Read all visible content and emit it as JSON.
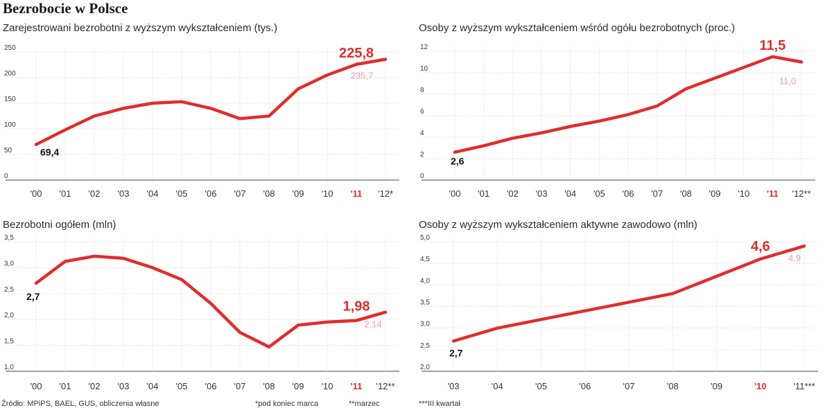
{
  "page_title": "Bezrobocie w Polsce",
  "colors": {
    "line": "#e02d2d",
    "highlight": "#e02d2d",
    "end_label": "#f09a9a",
    "axis": "#999999",
    "grid": "#d8d8d8",
    "text": "#222222"
  },
  "footer": {
    "source": "Źródło: MPiPS, BAEL, GUS, obliczenia własne",
    "note1": "*pod koniec marca",
    "note2": "**marzec",
    "note3": "***III kwartał"
  },
  "chart_data": [
    {
      "type": "line",
      "title": "Zarejestrowani bezrobotni z wyższym wykształceniem (tys.)",
      "categories": [
        "'00",
        "'01",
        "'02",
        "'03",
        "'04",
        "'05",
        "'06",
        "'07",
        "'08",
        "'09",
        "'10",
        "'11",
        "'12*"
      ],
      "highlight_category": "'11",
      "values": [
        69.4,
        98,
        125,
        140,
        150,
        153,
        140,
        120,
        125,
        178,
        205,
        225.8,
        235.7
      ],
      "ylim": [
        0,
        250
      ],
      "yticks": [
        "0",
        "50",
        "100",
        "150",
        "200",
        "250"
      ],
      "first_label": "69,4",
      "highlight_label": "225,8",
      "end_label": "235,7"
    },
    {
      "type": "line",
      "title": "Osoby z wyższym wykształceniem wśród ogółu bezrobotnych (proc.)",
      "categories": [
        "'00",
        "'01",
        "'02",
        "'03",
        "'04",
        "'05",
        "'06",
        "'07",
        "'08",
        "'09",
        "'10",
        "'11",
        "'12**"
      ],
      "highlight_category": "'11",
      "values": [
        2.6,
        3.2,
        3.9,
        4.4,
        5.0,
        5.5,
        6.1,
        6.9,
        8.5,
        9.5,
        10.5,
        11.5,
        11.0
      ],
      "ylim": [
        0,
        12
      ],
      "yticks": [
        "0",
        "2",
        "4",
        "6",
        "8",
        "10",
        "12"
      ],
      "first_label": "2,6",
      "highlight_label": "11,5",
      "end_label": "11,0"
    },
    {
      "type": "line",
      "title": "Bezrobotni ogółem (mln)",
      "categories": [
        "'00",
        "'01",
        "'02",
        "'03",
        "'04",
        "'05",
        "'06",
        "'07",
        "'08",
        "'09",
        "'10",
        "'11",
        "'12**"
      ],
      "highlight_category": "'11",
      "values": [
        2.7,
        3.12,
        3.22,
        3.18,
        3.0,
        2.77,
        2.31,
        1.75,
        1.47,
        1.89,
        1.95,
        1.98,
        2.14
      ],
      "ylim": [
        1.0,
        3.5
      ],
      "yticks": [
        "1,0",
        "1,5",
        "2,0",
        "2,5",
        "3,0",
        "3,5"
      ],
      "first_label": "2,7",
      "highlight_label": "1,98",
      "end_label": "2,14"
    },
    {
      "type": "line",
      "title": "Osoby z wyższym wykształceniem aktywne zawodowo (mln)",
      "categories": [
        "'03",
        "'04",
        "'05",
        "'06",
        "'07",
        "'08",
        "'09",
        "'10",
        "'11***"
      ],
      "highlight_category": "'10",
      "values": [
        2.7,
        3.0,
        3.2,
        3.4,
        3.6,
        3.8,
        4.2,
        4.6,
        4.9
      ],
      "ylim": [
        2.0,
        5.0
      ],
      "yticks": [
        "2,0",
        "2,5",
        "3,0",
        "3,5",
        "4,0",
        "4,5",
        "5,0"
      ],
      "first_label": "2,7",
      "highlight_label": "4,6",
      "end_label": "4,9"
    }
  ]
}
